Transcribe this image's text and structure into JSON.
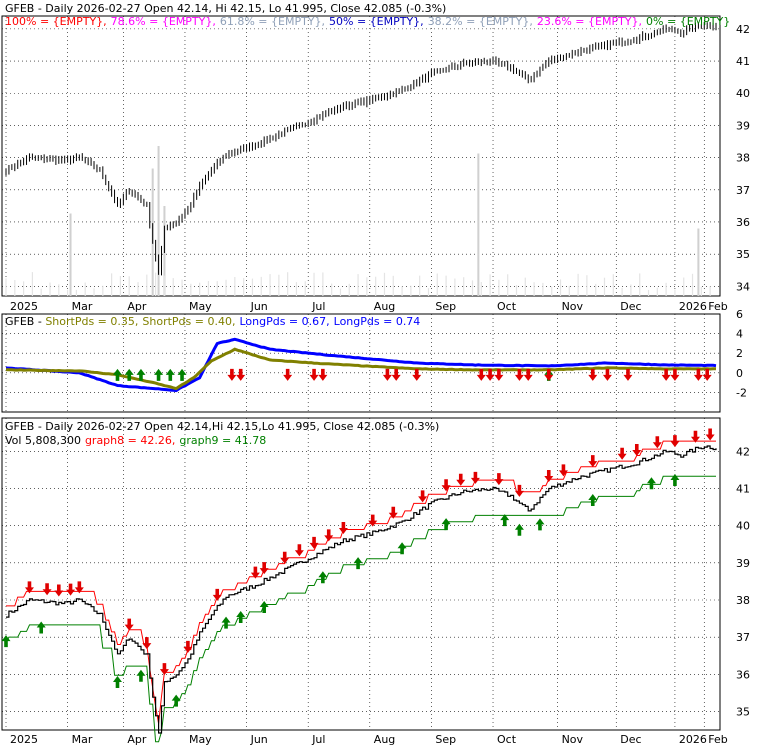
{
  "colors": {
    "price": "#000000",
    "volume": "#d0d0d0",
    "grid": "#000000",
    "short_pds": "#808000",
    "long_pds": "#0000ff",
    "thin_line": "#000000",
    "graph8": "#ff0000",
    "graph9": "#008000",
    "sell_arrow": "#e00000",
    "buy_arrow": "#008000",
    "fib100": "#ff0000",
    "fib786": "#ff00ff",
    "fib618": "#8fa0b8",
    "fib50": "#0000c0",
    "fib382": "#8fa0b8",
    "fib236": "#ff00ff",
    "fib0": "#008000"
  },
  "chart_data": [
    {
      "type": "candlestick",
      "panel": "price",
      "title": "GFEB - Daily 2026-02-27 Open 42.14, Hi 42.15, Lo 41.995, Close 42.085 (-0.3%)",
      "fib_labels": [
        {
          "text": "100% = {EMPTY},",
          "color": "#ff0000"
        },
        {
          "text": "78.6% = {EMPTY},",
          "color": "#ff00ff"
        },
        {
          "text": "61.8% = {EMPTY},",
          "color": "#8fa0b8"
        },
        {
          "text": "50% = {EMPTY},",
          "color": "#0000c0"
        },
        {
          "text": "38.2% = {EMPTY},",
          "color": "#8fa0b8"
        },
        {
          "text": "23.6% = {EMPTY},",
          "color": "#ff00ff"
        },
        {
          "text": "0% = {EMPTY}",
          "color": "#008000"
        }
      ],
      "ylim": [
        33.7,
        42.4
      ],
      "yticks": [
        "42",
        "41",
        "40",
        "39",
        "38",
        "37",
        "36",
        "35",
        "34"
      ],
      "xticks": [
        "2025",
        "Mar",
        "Apr",
        "May",
        "Jun",
        "Jul",
        "Aug",
        "Sep",
        "Oct",
        "Nov",
        "Dec",
        "2026",
        "Feb"
      ],
      "close_anchors": [
        {
          "d": 0,
          "v": 37.6
        },
        {
          "d": 8,
          "v": 38.0
        },
        {
          "d": 20,
          "v": 37.9
        },
        {
          "d": 25,
          "v": 38.0
        },
        {
          "d": 32,
          "v": 37.6
        },
        {
          "d": 36,
          "v": 36.9
        },
        {
          "d": 38,
          "v": 36.5
        },
        {
          "d": 42,
          "v": 37.0
        },
        {
          "d": 48,
          "v": 36.5
        },
        {
          "d": 50,
          "v": 35.4
        },
        {
          "d": 52,
          "v": 34.4
        },
        {
          "d": 54,
          "v": 35.8
        },
        {
          "d": 58,
          "v": 36.0
        },
        {
          "d": 62,
          "v": 36.4
        },
        {
          "d": 66,
          "v": 37.1
        },
        {
          "d": 70,
          "v": 37.6
        },
        {
          "d": 75,
          "v": 38.1
        },
        {
          "d": 85,
          "v": 38.4
        },
        {
          "d": 95,
          "v": 38.8
        },
        {
          "d": 105,
          "v": 39.2
        },
        {
          "d": 115,
          "v": 39.6
        },
        {
          "d": 125,
          "v": 39.8
        },
        {
          "d": 135,
          "v": 40.1
        },
        {
          "d": 145,
          "v": 40.6
        },
        {
          "d": 155,
          "v": 40.9
        },
        {
          "d": 165,
          "v": 41.0
        },
        {
          "d": 172,
          "v": 40.8
        },
        {
          "d": 178,
          "v": 40.4
        },
        {
          "d": 185,
          "v": 41.0
        },
        {
          "d": 195,
          "v": 41.3
        },
        {
          "d": 205,
          "v": 41.5
        },
        {
          "d": 215,
          "v": 41.7
        },
        {
          "d": 225,
          "v": 42.0
        },
        {
          "d": 230,
          "v": 41.9
        },
        {
          "d": 238,
          "v": 42.15
        },
        {
          "d": 242,
          "v": 42.085
        }
      ],
      "volume_spikes": [
        {
          "d": 22,
          "v": 0.55
        },
        {
          "d": 50,
          "v": 0.85
        },
        {
          "d": 52,
          "v": 1.0
        },
        {
          "d": 54,
          "v": 0.6
        },
        {
          "d": 161,
          "v": 0.95
        },
        {
          "d": 236,
          "v": 0.45
        }
      ]
    },
    {
      "type": "line",
      "panel": "indicator",
      "legend": [
        {
          "text": "GFEB - ",
          "color": "#000000"
        },
        {
          "text": "ShortPds = 0.35,",
          "color": "#808000"
        },
        {
          "text": "ShortPds = 0.40,",
          "color": "#808000"
        },
        {
          "text": "LongPds = 0.67,",
          "color": "#0000ff"
        },
        {
          "text": "LongPds = 0.74",
          "color": "#0000ff"
        }
      ],
      "ylim": [
        -4,
        6
      ],
      "yticks": [
        "6",
        "4",
        "2",
        "0",
        "-2"
      ],
      "long_anchors": [
        {
          "d": 0,
          "v": 0.5
        },
        {
          "d": 25,
          "v": 0.0
        },
        {
          "d": 38,
          "v": -1.3
        },
        {
          "d": 50,
          "v": -1.6
        },
        {
          "d": 58,
          "v": -1.8
        },
        {
          "d": 66,
          "v": -0.5
        },
        {
          "d": 72,
          "v": 3.0
        },
        {
          "d": 78,
          "v": 3.4
        },
        {
          "d": 90,
          "v": 2.4
        },
        {
          "d": 110,
          "v": 1.8
        },
        {
          "d": 140,
          "v": 1.0
        },
        {
          "d": 160,
          "v": 0.8
        },
        {
          "d": 185,
          "v": 0.7
        },
        {
          "d": 205,
          "v": 1.0
        },
        {
          "d": 225,
          "v": 0.8
        },
        {
          "d": 242,
          "v": 0.74
        }
      ],
      "short_anchors": [
        {
          "d": 0,
          "v": 0.3
        },
        {
          "d": 25,
          "v": 0.2
        },
        {
          "d": 38,
          "v": -0.2
        },
        {
          "d": 50,
          "v": -1.0
        },
        {
          "d": 58,
          "v": -1.6
        },
        {
          "d": 64,
          "v": -0.5
        },
        {
          "d": 70,
          "v": 1.2
        },
        {
          "d": 78,
          "v": 2.4
        },
        {
          "d": 90,
          "v": 1.3
        },
        {
          "d": 110,
          "v": 0.9
        },
        {
          "d": 140,
          "v": 0.4
        },
        {
          "d": 160,
          "v": 0.3
        },
        {
          "d": 185,
          "v": 0.3
        },
        {
          "d": 205,
          "v": 0.5
        },
        {
          "d": 225,
          "v": 0.4
        },
        {
          "d": 242,
          "v": 0.4
        }
      ],
      "buy_days": [
        38,
        42,
        46,
        52,
        56,
        60,
        185
      ],
      "sell_days": [
        77,
        80,
        96,
        105,
        108,
        130,
        133,
        140,
        162,
        165,
        168,
        175,
        178,
        185,
        200,
        205,
        212,
        225,
        228,
        236,
        239
      ]
    },
    {
      "type": "line",
      "panel": "bands",
      "title": "GFEB - Daily 2026-02-27 Open 42.14,Hi 42.15,Lo 41.995, Close 42.085 (-0.3%)",
      "legend": [
        {
          "text": "Vol 5,808,300",
          "color": "#000000"
        },
        {
          "text": "graph8 = 42.26,",
          "color": "#ff0000"
        },
        {
          "text": "graph9 = 41.78",
          "color": "#008000"
        }
      ],
      "ylim": [
        34.5,
        42.9
      ],
      "yticks": [
        "42",
        "41",
        "40",
        "39",
        "38",
        "37",
        "36",
        "35"
      ],
      "xticks": [
        "2025",
        "Mar",
        "Apr",
        "May",
        "Jun",
        "Jul",
        "Aug",
        "Sep",
        "Oct",
        "Nov",
        "Dec",
        "2026",
        "Feb"
      ],
      "buy_days": [
        0,
        12,
        38,
        46,
        52,
        58,
        75,
        80,
        88,
        108,
        120,
        135,
        150,
        170,
        175,
        182,
        200,
        220,
        228
      ],
      "sell_days": [
        8,
        14,
        18,
        22,
        25,
        42,
        48,
        54,
        62,
        72,
        85,
        88,
        95,
        100,
        105,
        110,
        115,
        125,
        132,
        142,
        150,
        155,
        160,
        168,
        175,
        185,
        190,
        200,
        210,
        215,
        222,
        228,
        235,
        240
      ]
    }
  ]
}
